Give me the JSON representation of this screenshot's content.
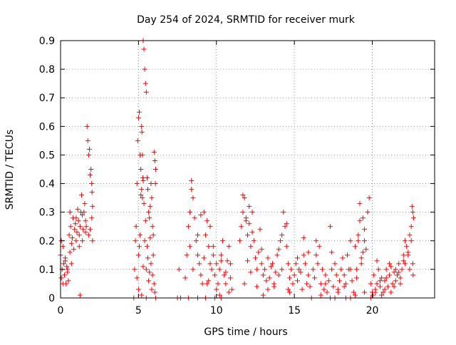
{
  "chart_data": {
    "type": "scatter",
    "title": "Day 254 of 2024, SRMTID for receiver murk",
    "xlabel": "GPS time / hours",
    "ylabel": "SRMTID / TECUs",
    "xlim": [
      0,
      24
    ],
    "ylim": [
      0,
      0.9
    ],
    "x_ticks": [
      0,
      5,
      10,
      15,
      20
    ],
    "x_tick_labels": [
      "0",
      "5",
      "10",
      "15",
      "20"
    ],
    "y_ticks": [
      0,
      0.1,
      0.2,
      0.3,
      0.4,
      0.5,
      0.6,
      0.7,
      0.8,
      0.9
    ],
    "y_tick_labels": [
      "0",
      "0.1",
      "0.2",
      "0.3",
      "0.4",
      "0.5",
      "0.6",
      "0.7",
      "0.8",
      "0.9"
    ],
    "grid": true,
    "legend": "none",
    "marker": "plus",
    "marker_color": "#ff0000",
    "series": [
      {
        "x": [
          0.0,
          0.05,
          0.1,
          0.15,
          0.2,
          0.25,
          0.3,
          0.35,
          0.4,
          0.45,
          0.5,
          0.55,
          0.6,
          0.65,
          0.7,
          0.75,
          0.8,
          0.85,
          0.9,
          0.95,
          1.0,
          1.05,
          1.1,
          1.15,
          1.2,
          1.25,
          1.3,
          1.35,
          1.4,
          1.45,
          1.5,
          1.55,
          1.6,
          1.65,
          1.7,
          1.75,
          1.8,
          1.85,
          1.9,
          1.95,
          2.0,
          2.02,
          2.05,
          0.05,
          0.15,
          0.3,
          0.45,
          0.6,
          1.0,
          1.2,
          1.4,
          1.6,
          1.8,
          1.9,
          2.0,
          2.05,
          1.25,
          0.7,
          4.75,
          4.8,
          4.85,
          4.9,
          4.95,
          5.0,
          5.05,
          5.1,
          5.15,
          5.2,
          5.25,
          5.3,
          5.35,
          5.4,
          5.45,
          5.5,
          5.55,
          5.6,
          5.65,
          5.7,
          5.75,
          5.8,
          5.85,
          5.9,
          5.95,
          6.0,
          6.05,
          6.1,
          5.2,
          5.22,
          5.25,
          5.28,
          5.3,
          5.15,
          5.1,
          5.05,
          5.0,
          5.35,
          5.4,
          5.5,
          5.6,
          5.7,
          5.8,
          5.9,
          6.0,
          6.05,
          5.45,
          5.55,
          5.75,
          5.95,
          6.08,
          4.9,
          5.0,
          5.2,
          5.3,
          5.65,
          5.85,
          7.6,
          8.0,
          8.1,
          8.2,
          8.3,
          8.4,
          8.5,
          8.6,
          8.7,
          8.8,
          8.9,
          9.0,
          9.1,
          9.2,
          9.3,
          9.4,
          9.5,
          9.6,
          9.7,
          9.8,
          9.9,
          10.0,
          10.1,
          10.2,
          10.3,
          10.4,
          10.5,
          10.6,
          10.7,
          10.8,
          10.9,
          11.0,
          8.3,
          8.5,
          8.8,
          9.2,
          9.4,
          9.6,
          9.8,
          10.0,
          10.3,
          10.6,
          10.8,
          8.4,
          9.0,
          9.5,
          10.2,
          10.9,
          11.5,
          11.6,
          11.7,
          11.8,
          11.9,
          12.0,
          12.1,
          12.2,
          12.3,
          12.4,
          12.5,
          12.6,
          12.7,
          12.8,
          12.9,
          13.0,
          13.1,
          13.2,
          13.3,
          13.4,
          13.5,
          13.6,
          13.7,
          13.8,
          13.9,
          14.0,
          14.1,
          14.2,
          14.3,
          14.4,
          14.5,
          14.6,
          14.7,
          14.8,
          14.9,
          15.0,
          15.1,
          15.2,
          15.3,
          15.4,
          15.5,
          15.6,
          15.7,
          15.8,
          15.9,
          16.0,
          11.7,
          11.9,
          12.1,
          12.3,
          12.6,
          12.9,
          13.3,
          13.7,
          14.2,
          14.5,
          14.7,
          15.2,
          15.6,
          15.9,
          11.8,
          12.0,
          12.2,
          13.0,
          14.0,
          14.6,
          16.2,
          16.3,
          16.4,
          16.5,
          16.6,
          16.7,
          16.8,
          16.9,
          17.0,
          17.1,
          17.2,
          17.3,
          17.4,
          17.5,
          17.6,
          17.7,
          17.8,
          17.9,
          18.0,
          18.1,
          18.2,
          18.3,
          18.4,
          18.5,
          18.6,
          18.7,
          18.8,
          18.9,
          19.0,
          19.1,
          19.2,
          19.3,
          19.4,
          19.5,
          19.6,
          19.7,
          19.8,
          16.4,
          16.7,
          17.0,
          17.4,
          17.8,
          18.2,
          18.6,
          19.0,
          19.3,
          19.5,
          19.2,
          19.4,
          19.5,
          18.9,
          19.1,
          19.9,
          20.0,
          20.1,
          20.2,
          20.3,
          20.4,
          20.5,
          20.6,
          20.7,
          20.8,
          20.9,
          21.0,
          21.1,
          21.2,
          21.3,
          21.4,
          21.5,
          21.6,
          21.7,
          21.8,
          21.9,
          22.0,
          22.1,
          22.2,
          22.3,
          22.4,
          22.5,
          22.6,
          22.65,
          20.2,
          20.5,
          20.8,
          21.1,
          21.4,
          21.7,
          22.0,
          22.3,
          22.5,
          22.55,
          22.6,
          22.62,
          20.05,
          20.3,
          20.6,
          20.9,
          21.2,
          21.5,
          21.8,
          22.1,
          22.4,
          4.7,
          5.5,
          6.1,
          7.5,
          7.7,
          8.2,
          8.8,
          9.3,
          9.9,
          10.3,
          16.1,
          17.3,
          17.6,
          18.3,
          18.6,
          19.9
        ],
        "y": [
          0.15,
          0.2,
          0.1,
          0.18,
          0.12,
          0.08,
          0.14,
          0.05,
          0.11,
          0.09,
          0.06,
          0.22,
          0.3,
          0.25,
          0.19,
          0.21,
          0.28,
          0.17,
          0.24,
          0.26,
          0.2,
          0.23,
          0.31,
          0.27,
          0.22,
          0.25,
          0.3,
          0.36,
          0.29,
          0.24,
          0.3,
          0.33,
          0.27,
          0.25,
          0.6,
          0.55,
          0.5,
          0.52,
          0.43,
          0.45,
          0.4,
          0.37,
          0.2,
          0.07,
          0.05,
          0.13,
          0.1,
          0.16,
          0.28,
          0.18,
          0.2,
          0.23,
          0.22,
          0.24,
          0.28,
          0.32,
          0.01,
          0.12,
          0.1,
          0.2,
          0.25,
          0.4,
          0.55,
          0.63,
          0.65,
          0.5,
          0.45,
          0.38,
          0.35,
          0.9,
          0.87,
          0.8,
          0.75,
          0.72,
          0.42,
          0.38,
          0.3,
          0.28,
          0.32,
          0.4,
          0.35,
          0.25,
          0.22,
          0.51,
          0.48,
          0.45,
          0.6,
          0.58,
          0.5,
          0.42,
          0.41,
          0.36,
          0.22,
          0.18,
          0.15,
          0.33,
          0.2,
          0.1,
          0.14,
          0.09,
          0.12,
          0.08,
          0.05,
          0.02,
          0.27,
          0.18,
          0.21,
          0.15,
          0.4,
          0.07,
          0.03,
          0.01,
          0.11,
          0.06,
          0.03,
          0.1,
          0.07,
          0.15,
          0.25,
          0.3,
          0.41,
          0.35,
          0.28,
          0.2,
          0.15,
          0.12,
          0.08,
          0.05,
          0.3,
          0.22,
          0.27,
          0.18,
          0.12,
          0.1,
          0.15,
          0.08,
          0.12,
          0.05,
          0.1,
          0.15,
          0.2,
          0.08,
          0.05,
          0.13,
          0.18,
          0.07,
          0.03,
          0.18,
          0.1,
          0.22,
          0.14,
          0.05,
          0.25,
          0.18,
          0.03,
          0.13,
          0.09,
          0.02,
          0.38,
          0.29,
          0.06,
          0.01,
          0.12,
          0.2,
          0.25,
          0.3,
          0.35,
          0.28,
          0.22,
          0.26,
          0.18,
          0.3,
          0.2,
          0.14,
          0.1,
          0.16,
          0.24,
          0.12,
          0.08,
          0.1,
          0.06,
          0.14,
          0.07,
          0.11,
          0.12,
          0.04,
          0.09,
          0.15,
          0.08,
          0.2,
          0.1,
          0.3,
          0.25,
          0.18,
          0.12,
          0.07,
          0.1,
          0.05,
          0.08,
          0.12,
          0.06,
          0.1,
          0.09,
          0.03,
          0.15,
          0.12,
          0.05,
          0.08,
          0.04,
          0.36,
          0.27,
          0.32,
          0.23,
          0.04,
          0.17,
          0.03,
          0.05,
          0.22,
          0.26,
          0.02,
          0.14,
          0.21,
          0.16,
          0.05,
          0.13,
          0.09,
          0.01,
          0.17,
          0.03,
          0.1,
          0.07,
          0.15,
          0.12,
          0.18,
          0.05,
          0.1,
          0.03,
          0.08,
          0.02,
          0.06,
          0.25,
          0.1,
          0.04,
          0.12,
          0.08,
          0.02,
          0.06,
          0.1,
          0.14,
          0.08,
          0.05,
          0.15,
          0.1,
          0.2,
          0.06,
          0.02,
          0.18,
          0.1,
          0.22,
          0.27,
          0.14,
          0.28,
          0.2,
          0.17,
          0.3,
          0.35,
          0.2,
          0.01,
          0.05,
          0.16,
          0.03,
          0.04,
          0.1,
          0.07,
          0.12,
          0.24,
          0.33,
          0.16,
          0.02,
          0.01,
          0.2,
          0.05,
          0.02,
          0.08,
          0.03,
          0.05,
          0.1,
          0.04,
          0.07,
          0.02,
          0.06,
          0.1,
          0.04,
          0.08,
          0.11,
          0.05,
          0.09,
          0.06,
          0.08,
          0.12,
          0.07,
          0.1,
          0.15,
          0.12,
          0.18,
          0.15,
          0.22,
          0.25,
          0.3,
          0.28,
          0.02,
          0.06,
          0.03,
          0.12,
          0.04,
          0.09,
          0.13,
          0.16,
          0.2,
          0.32,
          0.12,
          0.08,
          0.01,
          0.13,
          0.01,
          0.07,
          0.02,
          0.1,
          0.05,
          0.2,
          0.1,
          0.0,
          0.0,
          0.0,
          0.0,
          0.0,
          0.0,
          0.0,
          0.0,
          0.0,
          0.0,
          0.0,
          0.0,
          0.0,
          0.0,
          0.0,
          0.0
        ]
      }
    ]
  }
}
